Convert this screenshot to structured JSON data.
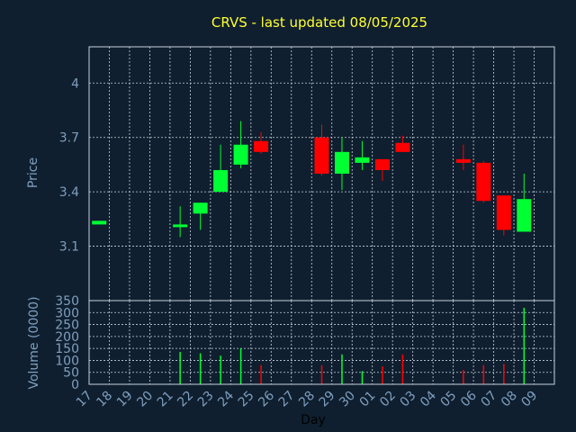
{
  "chart_data": {
    "type": "candlestick",
    "title": "CRVS - last updated 08/05/2025",
    "xlabel": "Day",
    "price_panel": {
      "ylabel": "Price",
      "ylim": [
        2.8,
        4.2
      ],
      "yticks": [
        "3.1",
        "3.4",
        "3.7",
        "4"
      ],
      "grid": true
    },
    "volume_panel": {
      "ylabel": "Volume (0000)",
      "ylim": [
        0,
        350
      ],
      "yticks": [
        "0",
        "50",
        "100",
        "150",
        "200",
        "250",
        "300",
        "350"
      ],
      "grid": true
    },
    "x_tick_labels": [
      "17",
      "18",
      "19",
      "20",
      "21",
      "22",
      "23",
      "24",
      "25",
      "26",
      "27",
      "28",
      "29",
      "30",
      "01",
      "02",
      "03",
      "04",
      "05",
      "06",
      "07",
      "08",
      "09"
    ],
    "colors": {
      "up": "#00ff33",
      "down": "#ff0000",
      "title": "#ffff33",
      "axis_text": "#7f9fbf",
      "background": "#0f1f2f",
      "grid": "#c8d2dc"
    },
    "candles": [
      {
        "x": "17",
        "open": 3.22,
        "high": 3.24,
        "low": 3.22,
        "close": 3.24,
        "volume": 0
      },
      {
        "x": "21",
        "open": 3.21,
        "high": 3.32,
        "low": 3.15,
        "close": 3.22,
        "volume": 135
      },
      {
        "x": "22",
        "open": 3.28,
        "high": 3.34,
        "low": 3.19,
        "close": 3.34,
        "volume": 130
      },
      {
        "x": "23",
        "open": 3.4,
        "high": 3.66,
        "low": 3.4,
        "close": 3.52,
        "volume": 120
      },
      {
        "x": "24",
        "open": 3.55,
        "high": 3.79,
        "low": 3.53,
        "close": 3.66,
        "volume": 150
      },
      {
        "x": "25",
        "open": 3.68,
        "high": 3.73,
        "low": 3.61,
        "close": 3.62,
        "volume": 80
      },
      {
        "x": "28",
        "open": 3.7,
        "high": 3.77,
        "low": 3.49,
        "close": 3.5,
        "volume": 80
      },
      {
        "x": "29",
        "open": 3.5,
        "high": 3.7,
        "low": 3.41,
        "close": 3.62,
        "volume": 125
      },
      {
        "x": "30",
        "open": 3.56,
        "high": 3.68,
        "low": 3.52,
        "close": 3.59,
        "volume": 55
      },
      {
        "x": "01",
        "open": 3.58,
        "high": 3.58,
        "low": 3.46,
        "close": 3.52,
        "volume": 75
      },
      {
        "x": "02",
        "open": 3.67,
        "high": 3.71,
        "low": 3.62,
        "close": 3.62,
        "volume": 125
      },
      {
        "x": "05",
        "open": 3.58,
        "high": 3.66,
        "low": 3.52,
        "close": 3.56,
        "volume": 60
      },
      {
        "x": "06",
        "open": 3.56,
        "high": 3.57,
        "low": 3.34,
        "close": 3.35,
        "volume": 80
      },
      {
        "x": "07",
        "open": 3.38,
        "high": 3.38,
        "low": 3.16,
        "close": 3.19,
        "volume": 85
      },
      {
        "x": "08",
        "open": 3.18,
        "high": 3.5,
        "low": 3.18,
        "close": 3.36,
        "volume": 320
      }
    ]
  }
}
